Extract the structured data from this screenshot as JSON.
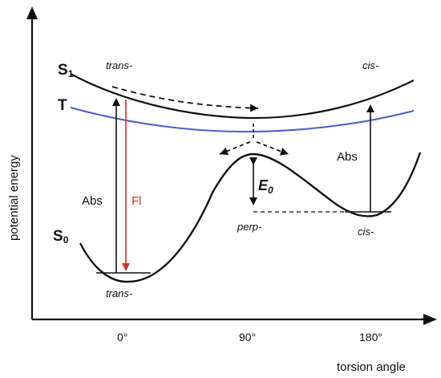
{
  "axes": {
    "y_title": "potential energy",
    "x_title": "torsion angle",
    "x_ticks": [
      "0°",
      "90°",
      "180°"
    ]
  },
  "states": {
    "s1": {
      "letter": "S",
      "subscript": "1"
    },
    "t": {
      "letter": "T"
    },
    "s0": {
      "letter": "S",
      "subscript": "0"
    }
  },
  "annotations": {
    "trans_top": "trans-",
    "cis_top": "cis-",
    "abs_left": "Abs",
    "fl": "Fl",
    "abs_right": "Abs",
    "barrier": {
      "letter": "E",
      "subscript": "0"
    },
    "perp": "perp-",
    "cis_bottom": "cis-",
    "trans_bottom": "trans-"
  },
  "colors": {
    "axis": "#111111",
    "s1_curve": "#111111",
    "t_curve": "#4a5fc8",
    "s0_curve": "#111111",
    "fl_arrow": "#c0392b",
    "fl_text": "#c0392b"
  }
}
